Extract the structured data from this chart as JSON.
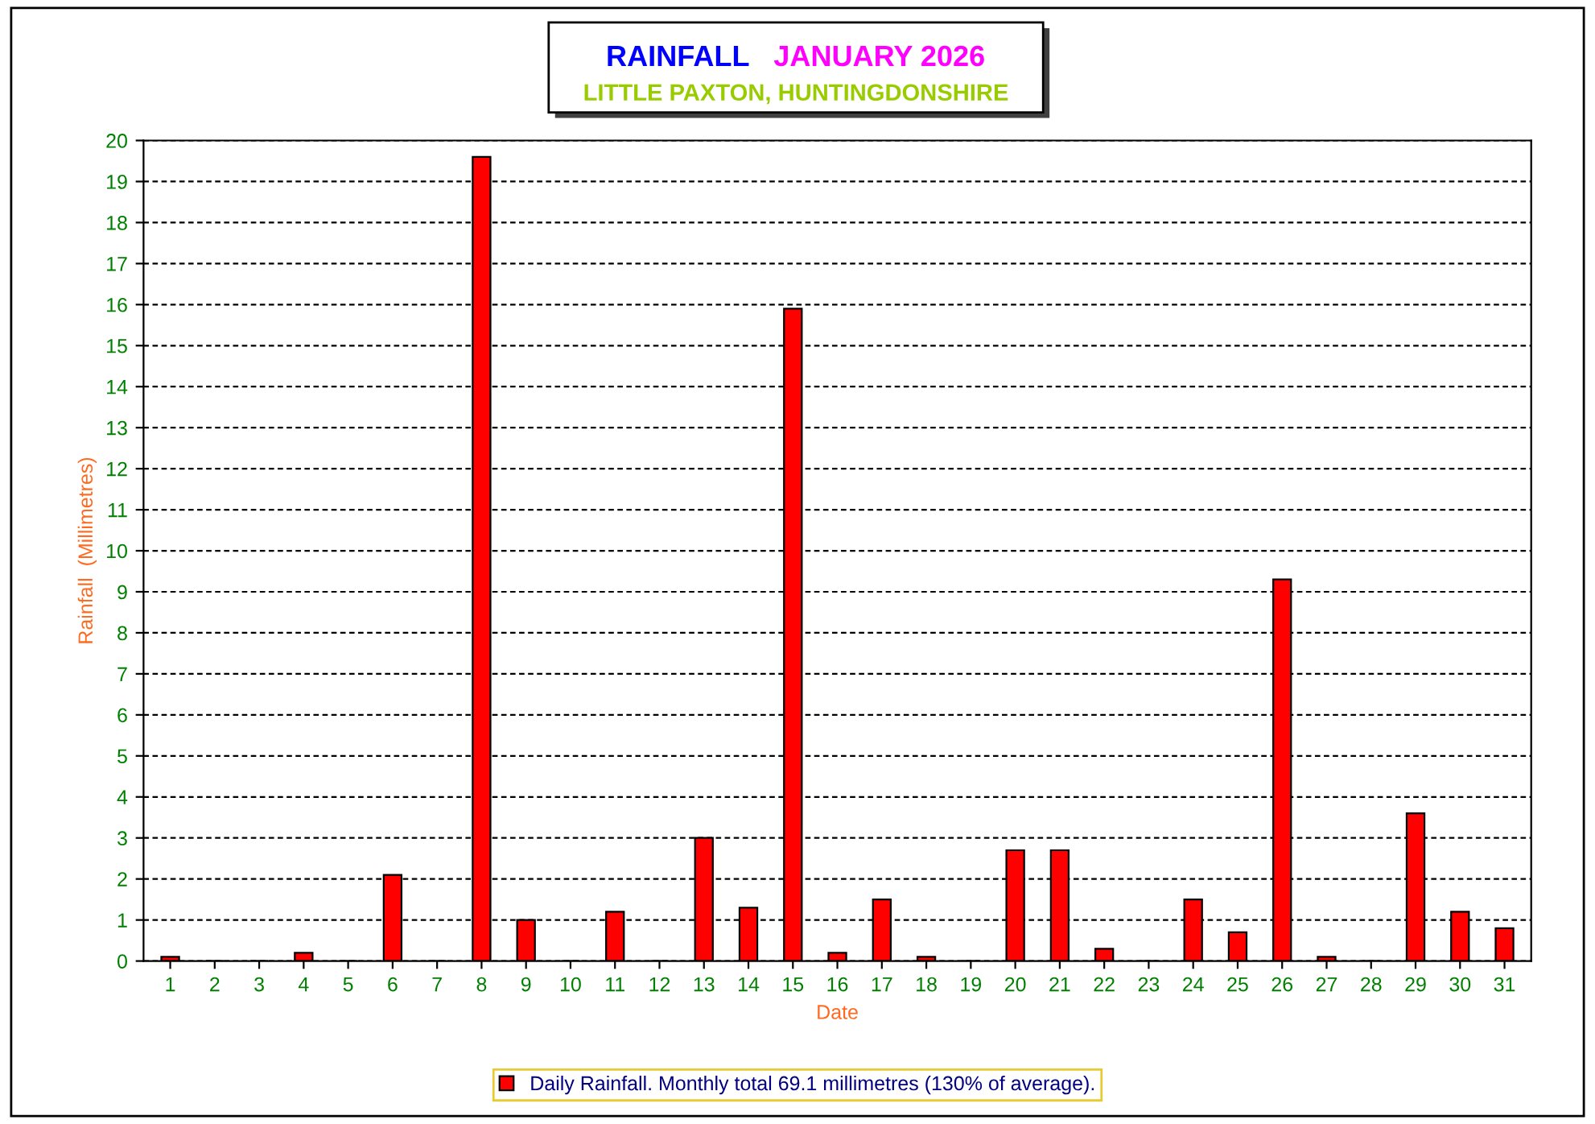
{
  "chart_data": {
    "type": "bar",
    "title": "RAINFALL JANUARY 2026",
    "subtitle": "LITTLE PAXTON, HUNTINGDONSHIRE",
    "xlabel": "Date",
    "ylabel": "Rainfall  (Millimetres)",
    "categories": [
      "1",
      "2",
      "3",
      "4",
      "5",
      "6",
      "7",
      "8",
      "9",
      "10",
      "11",
      "12",
      "13",
      "14",
      "15",
      "16",
      "17",
      "18",
      "19",
      "20",
      "21",
      "22",
      "23",
      "24",
      "25",
      "26",
      "27",
      "28",
      "29",
      "30",
      "31"
    ],
    "series": [
      {
        "name": "Daily Rainfall. Monthly total 69.1 millimetres (130% of average).",
        "color": "#ff0000",
        "values": [
          0.1,
          0,
          0,
          0.2,
          0,
          2.1,
          0,
          19.6,
          1.0,
          0,
          1.2,
          0,
          3.0,
          1.3,
          15.9,
          0.2,
          1.5,
          0.1,
          0,
          2.7,
          2.7,
          0.3,
          0,
          1.5,
          0.7,
          9.3,
          0.1,
          0,
          3.6,
          1.2,
          0.8
        ]
      }
    ],
    "ylim": [
      0,
      20
    ],
    "yticks": [
      0,
      1,
      2,
      3,
      4,
      5,
      6,
      7,
      8,
      9,
      10,
      11,
      12,
      13,
      14,
      15,
      16,
      17,
      18,
      19,
      20
    ],
    "grid": "y",
    "legend": "bottom"
  }
}
